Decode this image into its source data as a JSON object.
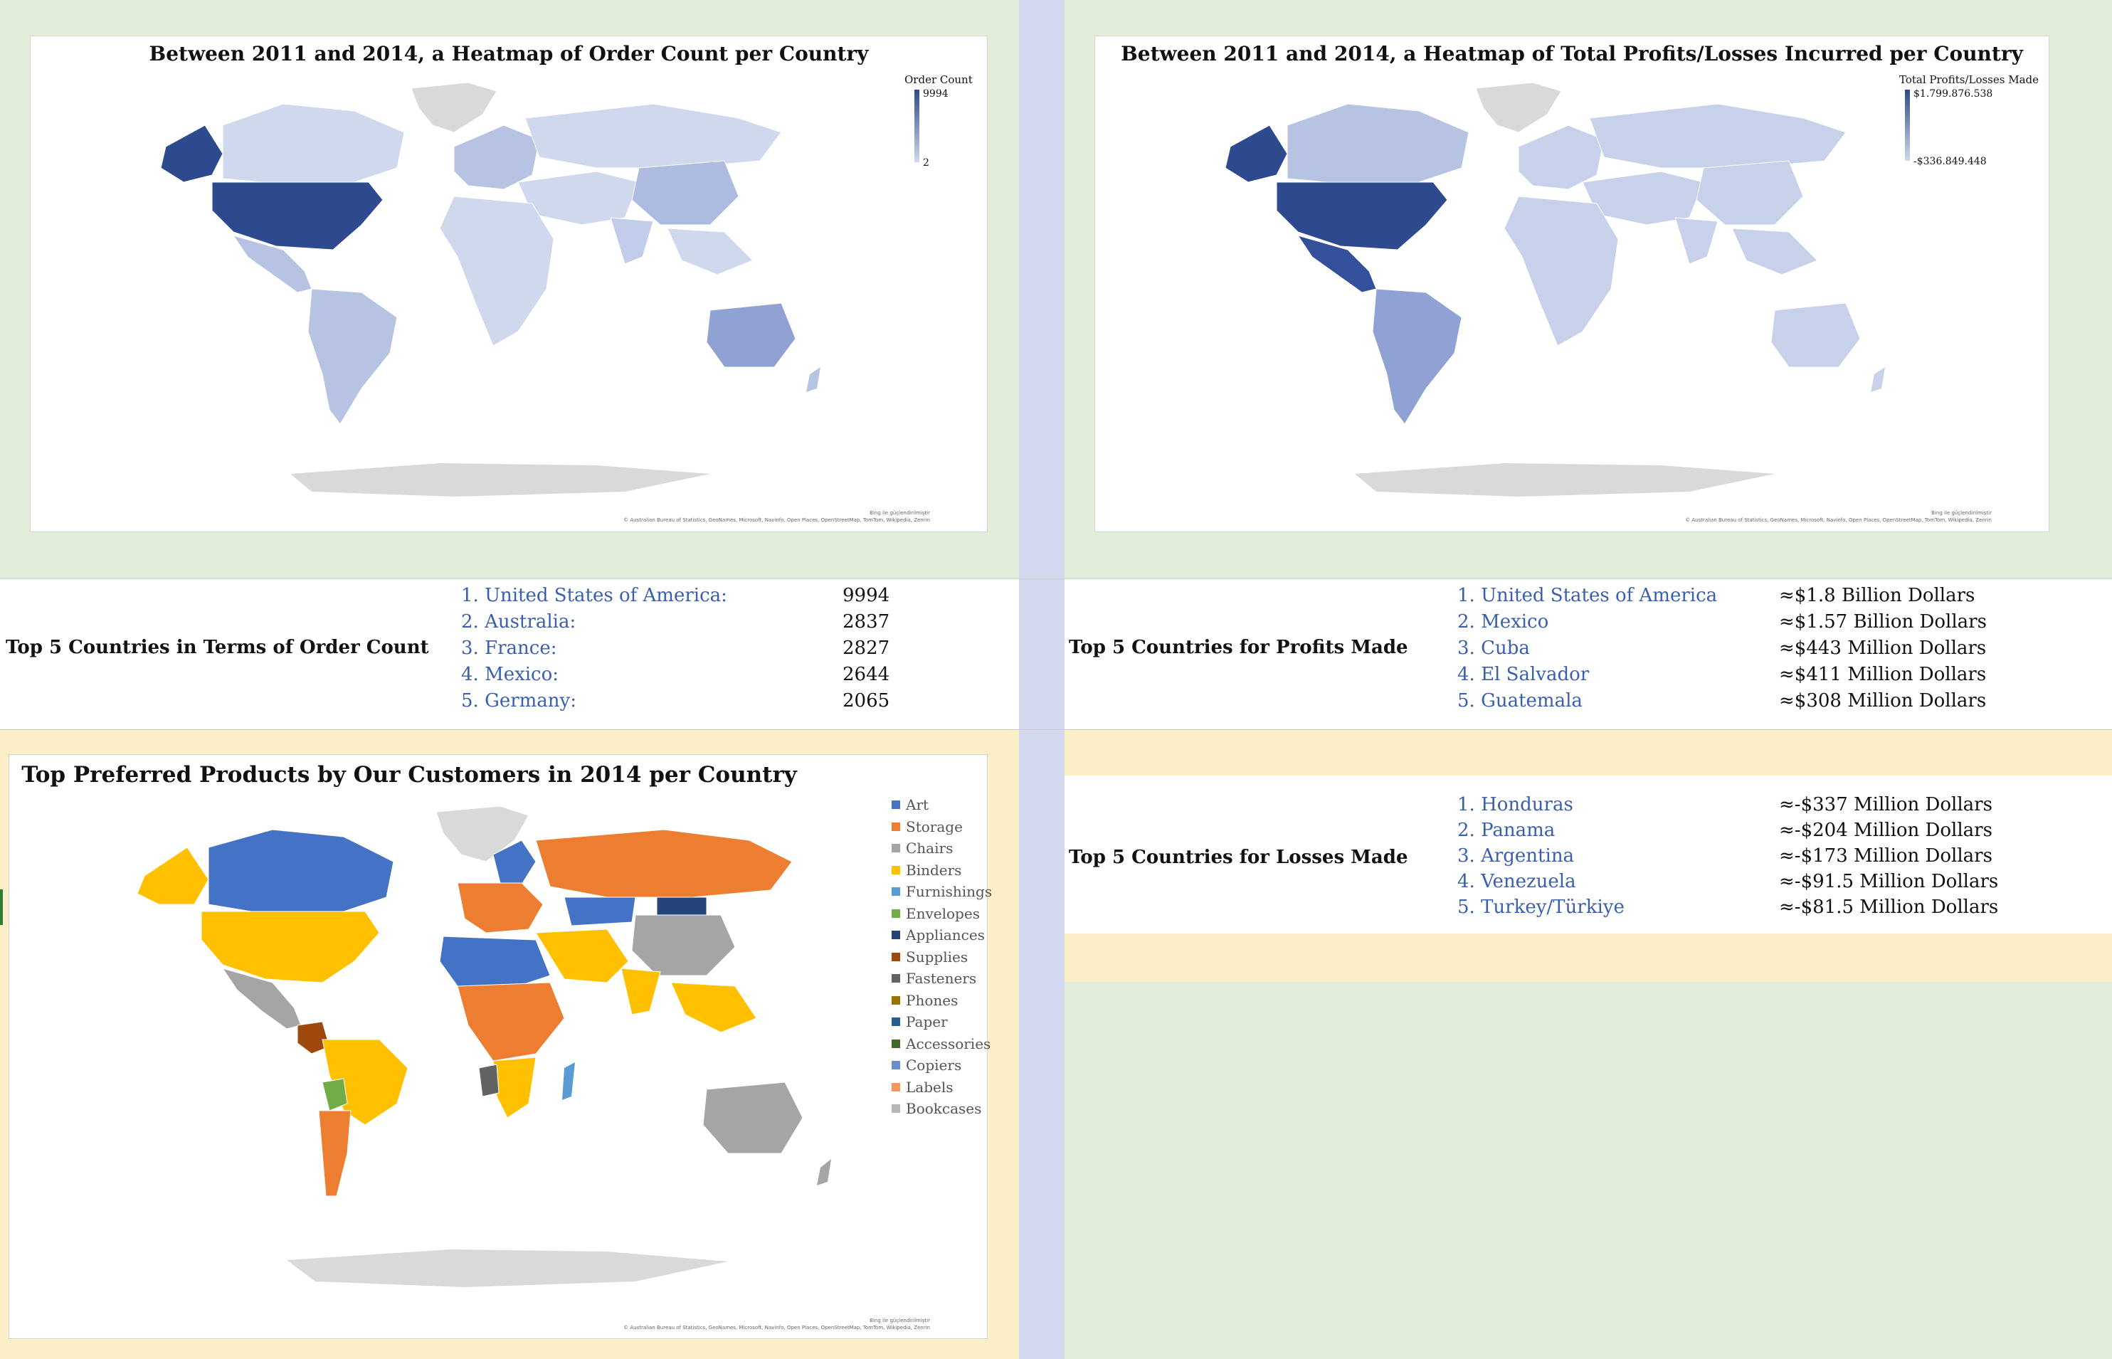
{
  "order_map": {
    "title": "Between 2011 and 2014, a Heatmap of Order Count per Country",
    "scale_title": "Order Count",
    "scale_max": "9994",
    "scale_min": "2",
    "attrib_line1": "Bing ile güçlendirilmiştir",
    "attrib_line2": "© Australian Bureau of Statistics, GeoNames, Microsoft, Navinfo, Open Places, OpenStreetMap, TomTom, Wikipedia, Zenrin",
    "colors": {
      "high": "#2e4a8e",
      "mid": "#8fa2d3",
      "low": "#cfd8ec",
      "none": "#d9d9d9"
    }
  },
  "profit_map": {
    "title": "Between 2011 and 2014, a Heatmap of Total Profits/Losses Incurred per Country",
    "scale_title": "Total Profits/Losses Made",
    "scale_max": "$1.799.876.538",
    "scale_min": "-$336.849.448",
    "attrib_line1": "Bing ile güçlendirilmiştir",
    "attrib_line2": "© Australian Bureau of Statistics, GeoNames, Microsoft, Navinfo, Open Places, OpenStreetMap, TomTom, Wikipedia, Zenrin"
  },
  "products_map": {
    "title": "Top Preferred Products by Our Customers in 2014 per Country",
    "attrib_line1": "Bing ile güçlendirilmiştir",
    "attrib_line2": "© Australian Bureau of Statistics, GeoNames, Microsoft, Navinfo, Open Places, OpenStreetMap, TomTom, Wikipedia, Zenrin",
    "legend": [
      {
        "label": "Art",
        "color": "#4472c4"
      },
      {
        "label": "Storage",
        "color": "#ed7d31"
      },
      {
        "label": "Chairs",
        "color": "#a5a5a5"
      },
      {
        "label": "Binders",
        "color": "#ffc000"
      },
      {
        "label": "Furnishings",
        "color": "#5b9bd5"
      },
      {
        "label": "Envelopes",
        "color": "#70ad47"
      },
      {
        "label": "Appliances",
        "color": "#264478"
      },
      {
        "label": "Supplies",
        "color": "#9e480e"
      },
      {
        "label": "Fasteners",
        "color": "#636363"
      },
      {
        "label": "Phones",
        "color": "#997300"
      },
      {
        "label": "Paper",
        "color": "#255e91"
      },
      {
        "label": "Accessories",
        "color": "#43682b"
      },
      {
        "label": "Copiers",
        "color": "#698ed0"
      },
      {
        "label": "Labels",
        "color": "#f1975a"
      },
      {
        "label": "Bookcases",
        "color": "#b7b7b7"
      }
    ]
  },
  "top_orders": {
    "label": "Top 5 Countries in Terms of Order Count",
    "items": [
      {
        "name": "1. United States of America:",
        "value": "9994"
      },
      {
        "name": "2. Australia:",
        "value": "2837"
      },
      {
        "name": "3. France:",
        "value": "2827"
      },
      {
        "name": "4. Mexico:",
        "value": "2644"
      },
      {
        "name": "5. Germany:",
        "value": "2065"
      }
    ]
  },
  "top_profits": {
    "label": "Top 5 Countries for Profits Made",
    "items": [
      {
        "name": "1. United States of America",
        "value": "≈$1.8 Billion Dollars"
      },
      {
        "name": "2. Mexico",
        "value": "≈$1.57 Billion Dollars"
      },
      {
        "name": "3. Cuba",
        "value": "≈$443 Million Dollars"
      },
      {
        "name": "4. El Salvador",
        "value": "≈$411 Million Dollars"
      },
      {
        "name": "5. Guatemala",
        "value": "≈$308 Million Dollars"
      }
    ]
  },
  "top_losses": {
    "label": "Top 5 Countries for Losses Made",
    "items": [
      {
        "name": "1. Honduras",
        "value": "≈-$337 Million Dollars"
      },
      {
        "name": "2. Panama",
        "value": "≈-$204 Million Dollars"
      },
      {
        "name": "3. Argentina",
        "value": "≈-$173 Million Dollars"
      },
      {
        "name": "4. Venezuela",
        "value": "≈-$91.5 Million Dollars"
      },
      {
        "name": "5. Turkey/Türkiye",
        "value": "≈-$81.5 Million Dollars"
      }
    ]
  }
}
